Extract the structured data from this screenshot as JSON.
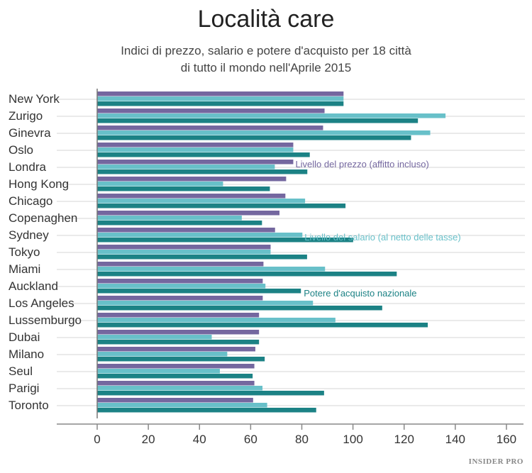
{
  "chart_data": {
    "type": "bar",
    "orientation": "horizontal",
    "title": "Località care",
    "subtitle": [
      "Indici di prezzo, salario e potere d'acquisto per 18 città",
      "di tutto il mondo nell'Aprile 2015"
    ],
    "categories": [
      "New York",
      "Zurigo",
      "Ginevra",
      "Oslo",
      "Londra",
      "Hong Kong",
      "Chicago",
      "Copenaghen",
      "Sydney",
      "Tokyo",
      "Miami",
      "Auckland",
      "Los Angeles",
      "Lussemburgo",
      "Dubai",
      "Milano",
      "Seul",
      "Parigi",
      "Toronto"
    ],
    "series": [
      {
        "name": "Livello del prezzo (affitto incluso)",
        "color": "#74679f",
        "values": [
          100,
          92.3,
          91.7,
          79.6,
          79.6,
          76.7,
          76.4,
          74.0,
          72.2,
          70.4,
          67.5,
          67.2,
          67.2,
          65.7,
          65.7,
          64.2,
          63.8,
          63.8,
          63.3
        ]
      },
      {
        "name": "Livello del salario (al netto delle tasse)",
        "color": "#68c0c9",
        "values": [
          100,
          141.4,
          135.2,
          79.6,
          72.1,
          51.1,
          84.4,
          58.7,
          83.3,
          70.4,
          92.5,
          68.3,
          87.6,
          96.7,
          46.5,
          52.8,
          49.8,
          67.1,
          69.0
        ]
      },
      {
        "name": "Potere d'acquisto nazionale",
        "color": "#1c8285",
        "values": [
          100,
          130.2,
          127.4,
          86.3,
          85.3,
          70.1,
          100.8,
          66.9,
          103.9,
          85.2,
          121.6,
          82.7,
          115.7,
          134.2,
          65.7,
          68.0,
          63.1,
          92.1,
          88.9
        ]
      }
    ],
    "xticks": [
      0,
      20,
      40,
      60,
      80,
      100,
      120,
      140,
      160
    ],
    "xlim": [
      0,
      160
    ],
    "grid": true,
    "legend": "inline labels"
  },
  "logo": "INSIDER PRO"
}
